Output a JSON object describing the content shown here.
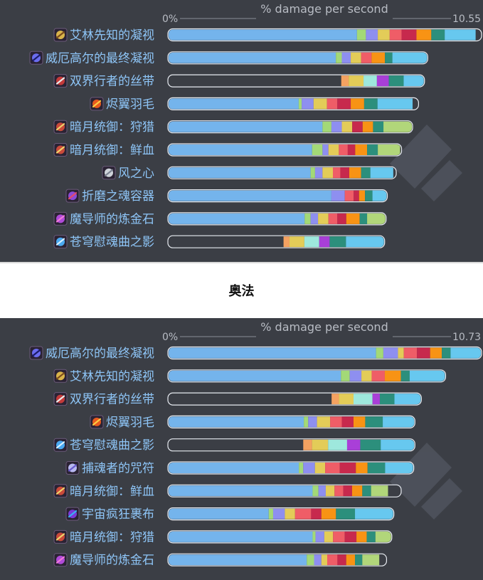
{
  "section_title": "奥法",
  "colors": {
    "panel_bg": "#3b3e45",
    "bar_blue": "#74b4ec",
    "label_blue": "#8ec5f7",
    "axis_text": "#b8bcc4",
    "empty_bar": "#3b3e45"
  },
  "chart_data": [
    {
      "type": "bar",
      "orientation": "horizontal",
      "stacked": true,
      "title": "% damage per second",
      "x_tick_min": "0%",
      "x_tick_max": "10.55",
      "xlim": [
        0,
        10.55
      ],
      "segment_palette": [
        "#a3d977",
        "#8e8ff0",
        "#e3cc58",
        "#ef5d67",
        "#c7294d",
        "#f89314",
        "#2c8f7c",
        "#67c8ef",
        "#9ee8dd",
        "#a93fd8",
        "#f4a261",
        "#b1d67a"
      ],
      "categories": [
        "艾林先知的凝视",
        "威厄高尔的最终凝视",
        "双界行者的丝带",
        "烬翼羽毛",
        "暗月统御：狩猎",
        "暗月统御：鲜血",
        "风之心",
        "折磨之魂容器",
        "魔导师的炼金石",
        "苍穹慰魂曲之影"
      ],
      "icons": [
        "seer-eye-icon",
        "eye-icon",
        "ribbon-icon",
        "feather-icon",
        "darkmoon-card-icon",
        "darkmoon-card-icon",
        "wind-heart-icon",
        "vessel-icon",
        "alchemy-stone-icon",
        "requiem-shadow-icon"
      ],
      "totals": [
        10.55,
        8.74,
        8.63,
        8.43,
        8.23,
        7.86,
        7.68,
        7.38,
        7.34,
        7.29
      ],
      "base_values": [
        6.36,
        5.65,
        0,
        4.4,
        5.2,
        4.85,
        4.8,
        5.5,
        4.6,
        0
      ],
      "segments": [
        [
          0.3,
          0.4,
          0.4,
          0.4,
          0.5,
          0.5,
          0.45,
          1.04
        ],
        [
          0.2,
          0.3,
          0.35,
          0.35,
          0.45,
          0.25,
          1.19
        ],
        [
          0.25,
          0.5,
          0.45,
          0.4,
          0.5,
          0.7
        ],
        [
          0.1,
          0.4,
          0.45,
          0.35,
          0.45,
          0.45,
          0.45,
          1.18
        ],
        [
          0.3,
          0.35,
          0.35,
          0.35,
          0.35,
          0.35,
          0.98
        ],
        [
          0.35,
          0.2,
          0.35,
          0.3,
          0.25,
          0.4,
          0.36,
          0.75
        ],
        [
          0.15,
          0.25,
          0.35,
          0.25,
          0.3,
          0.4,
          0.31,
          0.77
        ],
        [
          0.45,
          0.3,
          0.18,
          0.2,
          0.25,
          0.5
        ],
        [
          0.2,
          0.25,
          0.35,
          0.3,
          0.3,
          0.45,
          0.25,
          0.64
        ],
        [
          0.2,
          0.5,
          0.5,
          0.35,
          0.55,
          1.3
        ]
      ],
      "segment_colors": [
        [
          "#a3d977",
          "#8e8ff0",
          "#e3cc58",
          "#ef5d67",
          "#c7294d",
          "#f89314",
          "#2c8f7c",
          "#67c8ef"
        ],
        [
          "#a3d977",
          "#8e8ff0",
          "#e3cc58",
          "#ef5d67",
          "#f89314",
          "#2c8f7c",
          "#67c8ef"
        ],
        [
          "#f4a261",
          "#e3cc58",
          "#9ee8dd",
          "#a93fd8",
          "#2c8f7c",
          "#67c8ef"
        ],
        [
          "#a3d977",
          "#8e8ff0",
          "#e3cc58",
          "#ef5d67",
          "#c7294d",
          "#f89314",
          "#2c8f7c",
          "#67c8ef"
        ],
        [
          "#a3d977",
          "#8e8ff0",
          "#e3cc58",
          "#c7294d",
          "#f89314",
          "#2c8f7c",
          "#b1d67a"
        ],
        [
          "#a3d977",
          "#8e8ff0",
          "#e3cc58",
          "#ef5d67",
          "#c7294d",
          "#f89314",
          "#2c8f7c",
          "#b1d67a"
        ],
        [
          "#a3d977",
          "#8e8ff0",
          "#e3cc58",
          "#ef5d67",
          "#c7294d",
          "#f89314",
          "#2c8f7c",
          "#67c8ef"
        ],
        [
          "#8e8ff0",
          "#ef5d67",
          "#c7294d",
          "#f89314",
          "#2c8f7c",
          "#67c8ef"
        ],
        [
          "#a3d977",
          "#8e8ff0",
          "#e3cc58",
          "#ef5d67",
          "#c7294d",
          "#f89314",
          "#2c8f7c",
          "#b1d67a"
        ],
        [
          "#f4a261",
          "#e3cc58",
          "#9ee8dd",
          "#a93fd8",
          "#2c8f7c",
          "#67c8ef"
        ]
      ]
    },
    {
      "type": "bar",
      "orientation": "horizontal",
      "stacked": true,
      "title": "% damage per second",
      "x_tick_min": "0%",
      "x_tick_max": "10.73",
      "xlim": [
        0,
        10.73
      ],
      "categories": [
        "威厄高尔的最终凝视",
        "艾林先知的凝视",
        "双界行者的丝带",
        "烬翼羽毛",
        "苍穹慰魂曲之影",
        "捕魂者的咒符",
        "暗月统御：鲜血",
        "宇宙疯狂裹布",
        "暗月统御：狩猎",
        "魔导师的炼金石"
      ],
      "icons": [
        "eye-icon",
        "seer-eye-icon",
        "ribbon-icon",
        "feather-icon",
        "requiem-shadow-icon",
        "soul-catcher-icon",
        "darkmoon-card-icon",
        "cosmic-wrap-icon",
        "darkmoon-card-icon",
        "alchemy-stone-icon"
      ],
      "totals": [
        10.73,
        9.5,
        8.67,
        8.45,
        8.45,
        8.41,
        7.98,
        7.73,
        7.66,
        7.48
      ],
      "base_values": [
        7.12,
        5.92,
        0,
        4.65,
        0,
        4.48,
        4.95,
        3.45,
        4.95,
        4.75
      ],
      "segments": [
        [
          0.25,
          0.5,
          0.2,
          0.45,
          0.45,
          0.4,
          0.3,
          1.06
        ],
        [
          0.3,
          0.4,
          0.35,
          0.45,
          0.55,
          0.3,
          1.23
        ],
        [
          0.25,
          0.5,
          0.65,
          0.25,
          0.5,
          0.92
        ],
        [
          0.15,
          0.3,
          0.45,
          0.4,
          0.4,
          0.4,
          0.6,
          1.1
        ],
        [
          0.3,
          0.55,
          0.65,
          0.45,
          0.7,
          1.17
        ],
        [
          0.15,
          0.4,
          0.35,
          0.5,
          0.55,
          0.4,
          0.6,
          1.18
        ],
        [
          0.2,
          0.25,
          0.3,
          0.3,
          0.3,
          0.35,
          0.3,
          0.58
        ],
        [
          0.15,
          0.4,
          0.35,
          0.55,
          0.35,
          0.5,
          0.65,
          1.33
        ],
        [
          0.1,
          0.3,
          0.3,
          0.4,
          0.4,
          0.35,
          0.3,
          0.61
        ],
        [
          0.25,
          0.25,
          0.2,
          0.35,
          0.3,
          0.3,
          0.25,
          0.58
        ]
      ],
      "segment_colors": [
        [
          "#a3d977",
          "#8e8ff0",
          "#e3cc58",
          "#ef5d67",
          "#c7294d",
          "#f89314",
          "#2c8f7c",
          "#67c8ef"
        ],
        [
          "#a3d977",
          "#8e8ff0",
          "#e3cc58",
          "#ef5d67",
          "#f89314",
          "#2c8f7c",
          "#67c8ef"
        ],
        [
          "#f4a261",
          "#e3cc58",
          "#9ee8dd",
          "#a93fd8",
          "#2c8f7c",
          "#67c8ef"
        ],
        [
          "#a3d977",
          "#8e8ff0",
          "#e3cc58",
          "#ef5d67",
          "#c7294d",
          "#f89314",
          "#2c8f7c",
          "#67c8ef"
        ],
        [
          "#f4a261",
          "#e3cc58",
          "#9ee8dd",
          "#a93fd8",
          "#2c8f7c",
          "#67c8ef"
        ],
        [
          "#a3d977",
          "#8e8ff0",
          "#e3cc58",
          "#ef5d67",
          "#c7294d",
          "#f89314",
          "#2c8f7c",
          "#67c8ef"
        ],
        [
          "#a3d977",
          "#8e8ff0",
          "#e3cc58",
          "#ef5d67",
          "#c7294d",
          "#f89314",
          "#2c8f7c",
          "#b1d67a"
        ],
        [
          "#a3d977",
          "#8e8ff0",
          "#e3cc58",
          "#ef5d67",
          "#c7294d",
          "#f89314",
          "#2c8f7c",
          "#67c8ef"
        ],
        [
          "#a3d977",
          "#8e8ff0",
          "#e3cc58",
          "#ef5d67",
          "#c7294d",
          "#f89314",
          "#2c8f7c",
          "#b1d67a"
        ],
        [
          "#a3d977",
          "#8e8ff0",
          "#e3cc58",
          "#ef5d67",
          "#c7294d",
          "#f89314",
          "#2c8f7c",
          "#b1d67a"
        ]
      ]
    }
  ]
}
